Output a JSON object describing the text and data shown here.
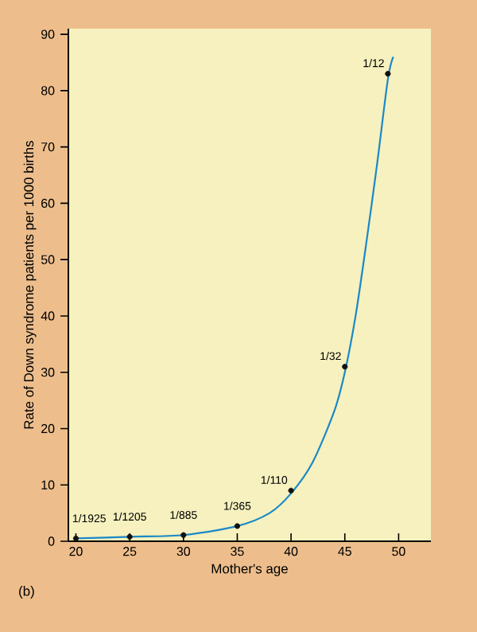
{
  "chart_data": {
    "type": "line",
    "xlabel": "Mother's age",
    "ylabel": "Rate of Down syndrome patients per 1000 births",
    "annotations": [
      "(b)",
      {
        "text": "1/1925",
        "x": 20,
        "y": 0.5
      },
      {
        "text": "1/1205",
        "x": 25,
        "y": 0.8
      },
      {
        "text": "1/885",
        "x": 30,
        "y": 1.1
      },
      {
        "text": "1/365",
        "x": 35,
        "y": 2.7
      },
      {
        "text": "1/110",
        "x": 40,
        "y": 9
      },
      {
        "text": "1/32",
        "x": 45,
        "y": 31
      },
      {
        "text": "1/12",
        "x": 49,
        "y": 83
      }
    ],
    "xlim": [
      19.3,
      53
    ],
    "ylim": [
      0,
      91
    ],
    "xticks": [
      20,
      25,
      30,
      35,
      40,
      45,
      50
    ],
    "yticks": [
      0,
      10,
      20,
      30,
      40,
      50,
      60,
      70,
      80,
      90
    ],
    "series": [
      {
        "color": "#1a88c8",
        "marker": "none",
        "x": [
          20,
          25,
          30,
          35,
          38,
          40,
          42,
          44,
          45,
          46,
          47,
          48,
          49,
          49.5
        ],
        "values": [
          0.5,
          0.8,
          1.1,
          2.7,
          5,
          8.5,
          14,
          23,
          30,
          40,
          53,
          67,
          82,
          86
        ]
      },
      {
        "type": "scatter",
        "color": "#111111",
        "marker": "circle",
        "x": [
          20,
          25,
          30,
          35,
          40,
          45,
          49
        ],
        "values": [
          0.5,
          0.8,
          1.1,
          2.7,
          9,
          31,
          83
        ]
      }
    ]
  }
}
